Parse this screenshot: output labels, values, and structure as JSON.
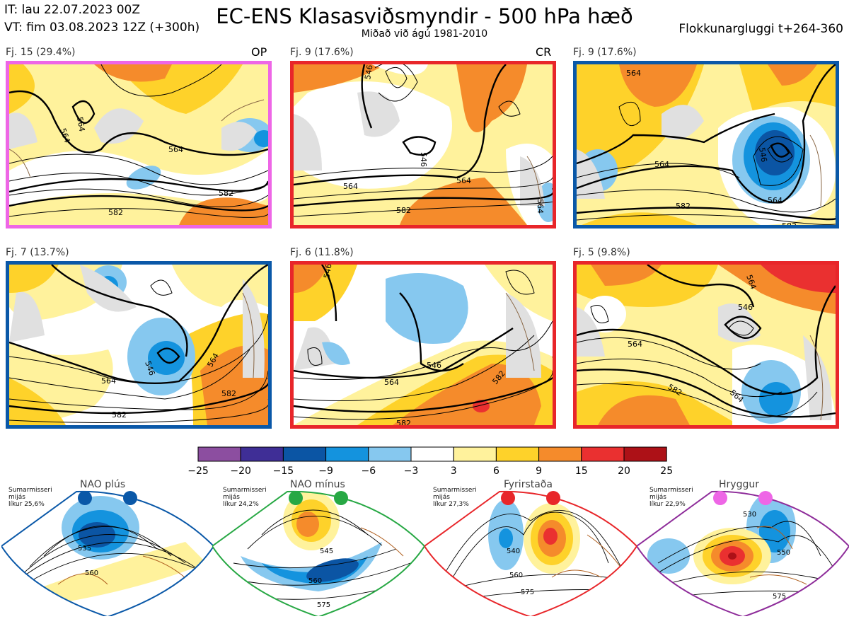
{
  "header": {
    "init_time": "IT: lau 22.07.2023 00Z",
    "valid_time": "VT: fim 03.08.2023 12Z  (+300h)",
    "title": "EC-ENS Klasasviðsmyndir - 500 hPa hæð",
    "subtitle": "Miðað við ágú 1981-2010",
    "window": "Flokkunargluggi t+264-360"
  },
  "panels": [
    {
      "label": "Fj. 15 (29.4%)",
      "tag": "OP",
      "frame_color": "#ee66e6",
      "contours": [
        "564",
        "564",
        "564",
        "582",
        "582"
      ]
    },
    {
      "label": "Fj. 9 (17.6%)",
      "tag": "CR",
      "frame_color": "#e8262a",
      "contours": [
        "546",
        "546",
        "564",
        "564",
        "564",
        "582"
      ]
    },
    {
      "label": "Fj. 9 (17.6%)",
      "tag": "",
      "frame_color": "#0a58a8",
      "contours": [
        "564",
        "546",
        "564",
        "564",
        "582",
        "582"
      ]
    },
    {
      "label": "Fj. 7 (13.7%)",
      "tag": "",
      "frame_color": "#0a58a8",
      "contours": [
        "546",
        "564",
        "564",
        "582",
        "582"
      ]
    },
    {
      "label": "Fj. 6 (11.8%)",
      "tag": "",
      "frame_color": "#e8262a",
      "contours": [
        "546",
        "546",
        "564",
        "582",
        "582"
      ]
    },
    {
      "label": "Fj. 5 (9.8%)",
      "tag": "",
      "frame_color": "#e8262a",
      "contours": [
        "564",
        "546",
        "564",
        "582",
        "564",
        "582"
      ]
    }
  ],
  "colorbar": {
    "ticks": [
      "−25",
      "−20",
      "−15",
      "−9",
      "−6",
      "−3",
      "3",
      "6",
      "9",
      "15",
      "20",
      "25"
    ],
    "colors": [
      "#8c4ea0",
      "#3f2e96",
      "#0b55a4",
      "#1493de",
      "#86c8ef",
      "#ffffff",
      "#fff29c",
      "#fed22a",
      "#f58b2b",
      "#ea3030",
      "#ad1117"
    ]
  },
  "regimes": [
    {
      "name": "NAO plús",
      "season": "Sumarmisseri",
      "mean": "mijás",
      "prob": "líkur 25,6%",
      "color": "#0a58a8",
      "contours": [
        "535",
        "560"
      ]
    },
    {
      "name": "NAO mínus",
      "season": "Sumarmisseri",
      "mean": "mijás",
      "prob": "líkur 24,2%",
      "color": "#27a844",
      "contours": [
        "545",
        "560",
        "575"
      ]
    },
    {
      "name": "Fyrirstaða",
      "season": "Sumarmisseri",
      "mean": "mijás",
      "prob": "líkur 27,3%",
      "color": "#e8262a",
      "contours": [
        "540",
        "560",
        "575"
      ]
    },
    {
      "name": "Hryggur",
      "season": "Sumarmisseri",
      "mean": "mijás",
      "prob": "líkur 22,9%",
      "color": "#8e2c9a",
      "contours": [
        "530",
        "550",
        "575"
      ]
    }
  ]
}
